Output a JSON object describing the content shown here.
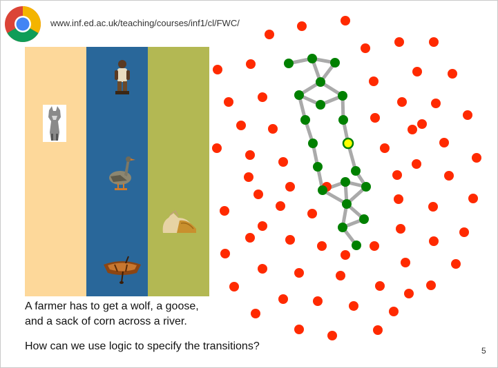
{
  "header": {
    "url": "www.inf.ed.ac.uk/teaching/courses/inf1/cl/FWC/"
  },
  "river": {
    "bank_left_color": "#fdd89a",
    "water_color": "#29679a",
    "bank_right_color": "#b3b853",
    "items": [
      {
        "name": "farmer",
        "band": "water"
      },
      {
        "name": "wolf",
        "band": "left-bank"
      },
      {
        "name": "goose",
        "band": "water"
      },
      {
        "name": "corn",
        "band": "right-bank"
      },
      {
        "name": "boat",
        "band": "water"
      }
    ]
  },
  "caption": {
    "line1": "A farmer has to get a wolf, a goose,",
    "line2": "and a sack of corn across a river."
  },
  "question": "How can we use logic to specify the transitions?",
  "page_number": "5",
  "graph": {
    "red_color": "#ff2a00",
    "green_color": "#008000",
    "current_color": "#ffff00",
    "edge_color": "#aaaaaa",
    "red_count": 74,
    "green_count": 18,
    "current_count": 1
  }
}
